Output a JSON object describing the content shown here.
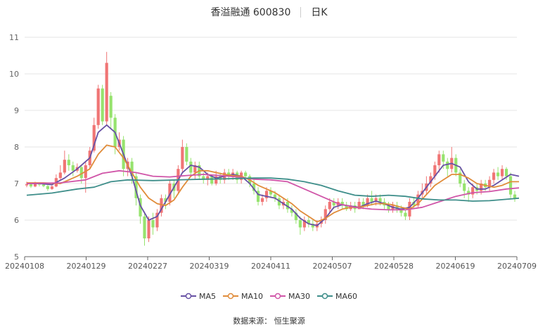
{
  "header": {
    "title": "香溢融通 600830",
    "period": "日K"
  },
  "source": "数据来源： 恒生聚源",
  "chart_data": {
    "type": "candlestick",
    "y_ticks": [
      "5",
      "6",
      "7",
      "8",
      "9",
      "10",
      "11"
    ],
    "ylim": [
      5,
      11
    ],
    "x_tick_labels": [
      "20240108",
      "20240129",
      "20240227",
      "20240319",
      "20240411",
      "20240507",
      "20240528",
      "20240619",
      "20240709"
    ],
    "colors": {
      "up": "#f07575",
      "down": "#96e36e",
      "MA5": "#6750a4",
      "MA10": "#e08c3a",
      "MA30": "#d055a8",
      "MA60": "#3e8e8a"
    },
    "candles": [
      [
        6.95,
        6.98,
        6.9,
        7.05
      ],
      [
        6.98,
        6.92,
        6.88,
        7.02
      ],
      [
        6.92,
        7.0,
        6.9,
        7.05
      ],
      [
        7.0,
        6.97,
        6.92,
        7.03
      ],
      [
        6.97,
        6.93,
        6.9,
        7.0
      ],
      [
        6.93,
        6.85,
        6.8,
        6.96
      ],
      [
        6.85,
        6.92,
        6.83,
        6.95
      ],
      [
        6.92,
        7.15,
        6.9,
        7.25
      ],
      [
        7.15,
        7.3,
        7.1,
        7.5
      ],
      [
        7.3,
        7.65,
        7.25,
        7.9
      ],
      [
        7.65,
        7.5,
        7.35,
        7.8
      ],
      [
        7.5,
        7.35,
        7.2,
        7.6
      ],
      [
        7.35,
        7.45,
        7.3,
        7.55
      ],
      [
        7.45,
        7.15,
        7.0,
        7.5
      ],
      [
        7.15,
        7.5,
        6.75,
        7.6
      ],
      [
        7.5,
        7.9,
        7.4,
        8.0
      ],
      [
        7.9,
        8.6,
        7.85,
        8.8
      ],
      [
        8.6,
        9.6,
        8.5,
        9.7
      ],
      [
        9.6,
        8.7,
        8.6,
        9.7
      ],
      [
        8.7,
        10.3,
        8.6,
        10.6
      ],
      [
        9.4,
        8.8,
        8.5,
        9.5
      ],
      [
        8.8,
        8.0,
        7.8,
        8.9
      ],
      [
        8.0,
        8.2,
        7.9,
        8.4
      ],
      [
        8.2,
        7.4,
        7.2,
        8.3
      ],
      [
        7.4,
        7.6,
        7.2,
        7.7
      ],
      [
        7.6,
        7.2,
        7.0,
        7.7
      ],
      [
        7.2,
        6.6,
        6.4,
        7.3
      ],
      [
        6.6,
        6.1,
        5.9,
        6.7
      ],
      [
        6.1,
        5.5,
        5.3,
        6.2
      ],
      [
        5.5,
        6.0,
        5.4,
        6.1
      ],
      [
        6.0,
        5.8,
        5.6,
        6.2
      ],
      [
        5.8,
        6.2,
        5.7,
        6.3
      ],
      [
        6.2,
        6.6,
        6.1,
        6.7
      ],
      [
        6.6,
        6.5,
        6.3,
        6.7
      ],
      [
        6.5,
        7.0,
        6.4,
        7.1
      ],
      [
        7.0,
        6.8,
        6.6,
        7.1
      ],
      [
        6.8,
        7.4,
        6.7,
        7.5
      ],
      [
        7.4,
        8.0,
        7.3,
        8.2
      ],
      [
        8.0,
        7.6,
        7.5,
        8.1
      ],
      [
        7.6,
        7.3,
        7.2,
        7.7
      ],
      [
        7.3,
        7.5,
        7.1,
        7.6
      ],
      [
        7.5,
        7.2,
        7.1,
        7.6
      ],
      [
        7.2,
        7.1,
        7.0,
        7.3
      ],
      [
        7.1,
        7.2,
        6.95,
        7.3
      ],
      [
        7.2,
        7.0,
        6.95,
        7.25
      ],
      [
        7.0,
        7.2,
        6.95,
        7.35
      ],
      [
        7.2,
        7.1,
        7.0,
        7.3
      ],
      [
        7.1,
        7.3,
        7.0,
        7.4
      ],
      [
        7.3,
        7.2,
        7.1,
        7.4
      ],
      [
        7.2,
        7.3,
        7.1,
        7.4
      ],
      [
        7.3,
        7.1,
        7.0,
        7.35
      ],
      [
        7.1,
        7.3,
        7.0,
        7.35
      ],
      [
        7.3,
        7.2,
        7.1,
        7.35
      ],
      [
        7.2,
        7.0,
        6.9,
        7.25
      ],
      [
        7.0,
        6.8,
        6.7,
        7.1
      ],
      [
        6.8,
        6.5,
        6.4,
        6.9
      ],
      [
        6.5,
        6.6,
        6.4,
        6.7
      ],
      [
        6.6,
        6.8,
        6.5,
        6.9
      ],
      [
        6.8,
        6.7,
        6.6,
        6.9
      ],
      [
        6.7,
        6.6,
        6.5,
        6.8
      ],
      [
        6.6,
        6.4,
        6.3,
        6.7
      ],
      [
        6.4,
        6.5,
        6.3,
        6.6
      ],
      [
        6.5,
        6.3,
        6.2,
        6.6
      ],
      [
        6.3,
        6.2,
        6.1,
        6.4
      ],
      [
        6.2,
        6.0,
        5.9,
        6.3
      ],
      [
        6.0,
        5.8,
        5.6,
        6.1
      ],
      [
        5.8,
        6.0,
        5.7,
        6.1
      ],
      [
        6.0,
        5.9,
        5.8,
        6.1
      ],
      [
        5.9,
        5.8,
        5.7,
        6.0
      ],
      [
        5.8,
        5.9,
        5.7,
        6.0
      ],
      [
        5.9,
        6.0,
        5.8,
        6.1
      ],
      [
        6.0,
        6.3,
        5.9,
        6.4
      ],
      [
        6.3,
        6.5,
        6.2,
        6.6
      ],
      [
        6.5,
        6.4,
        6.3,
        6.6
      ],
      [
        6.4,
        6.5,
        6.3,
        6.6
      ],
      [
        6.5,
        6.4,
        6.3,
        6.6
      ],
      [
        6.4,
        6.3,
        6.25,
        6.5
      ],
      [
        6.3,
        6.4,
        6.25,
        6.5
      ],
      [
        6.4,
        6.3,
        6.2,
        6.5
      ],
      [
        6.3,
        6.5,
        6.3,
        6.6
      ],
      [
        6.5,
        6.4,
        6.3,
        6.6
      ],
      [
        6.4,
        6.6,
        6.35,
        6.7
      ],
      [
        6.6,
        6.5,
        6.4,
        6.8
      ],
      [
        6.5,
        6.6,
        6.4,
        6.7
      ],
      [
        6.6,
        6.5,
        6.4,
        6.7
      ],
      [
        6.5,
        6.4,
        6.3,
        6.6
      ],
      [
        6.4,
        6.3,
        6.2,
        6.5
      ],
      [
        6.3,
        6.4,
        6.2,
        6.5
      ],
      [
        6.4,
        6.3,
        6.2,
        6.5
      ],
      [
        6.3,
        6.2,
        6.1,
        6.4
      ],
      [
        6.2,
        6.1,
        6.0,
        6.3
      ],
      [
        6.1,
        6.5,
        6.0,
        6.6
      ],
      [
        6.5,
        6.4,
        6.3,
        6.6
      ],
      [
        6.4,
        6.7,
        6.35,
        6.8
      ],
      [
        6.7,
        6.8,
        6.6,
        7.0
      ],
      [
        6.8,
        7.0,
        6.7,
        7.2
      ],
      [
        7.0,
        7.2,
        6.9,
        7.3
      ],
      [
        7.2,
        7.5,
        7.1,
        7.6
      ],
      [
        7.5,
        7.8,
        7.3,
        7.9
      ],
      [
        7.8,
        7.6,
        7.4,
        7.9
      ],
      [
        7.6,
        7.4,
        7.2,
        7.7
      ],
      [
        7.4,
        7.7,
        7.3,
        8.0
      ],
      [
        7.7,
        7.3,
        7.2,
        7.8
      ],
      [
        7.3,
        7.0,
        6.9,
        7.4
      ],
      [
        7.0,
        6.8,
        6.6,
        7.1
      ],
      [
        6.8,
        6.7,
        6.5,
        6.9
      ],
      [
        6.7,
        6.9,
        6.6,
        7.0
      ],
      [
        6.9,
        6.8,
        6.7,
        7.0
      ],
      [
        6.8,
        7.0,
        6.7,
        7.1
      ],
      [
        7.0,
        6.9,
        6.8,
        7.1
      ],
      [
        6.9,
        7.1,
        6.8,
        7.2
      ],
      [
        7.1,
        7.3,
        7.0,
        7.4
      ],
      [
        7.3,
        7.2,
        7.1,
        7.45
      ],
      [
        7.2,
        7.4,
        7.1,
        7.5
      ],
      [
        7.4,
        7.2,
        7.1,
        7.45
      ],
      [
        7.2,
        6.7,
        6.6,
        7.3
      ],
      [
        6.7,
        6.6,
        6.5,
        6.8
      ]
    ],
    "series": [
      {
        "name": "MA5",
        "points": [
          [
            0,
            7.0
          ],
          [
            3,
            7.0
          ],
          [
            6,
            6.97
          ],
          [
            9,
            7.15
          ],
          [
            12,
            7.4
          ],
          [
            15,
            7.7
          ],
          [
            17,
            8.4
          ],
          [
            19,
            8.6
          ],
          [
            21,
            8.4
          ],
          [
            23,
            7.8
          ],
          [
            25,
            7.2
          ],
          [
            27,
            6.4
          ],
          [
            29,
            6.0
          ],
          [
            31,
            6.1
          ],
          [
            33,
            6.5
          ],
          [
            35,
            6.9
          ],
          [
            37,
            7.3
          ],
          [
            39,
            7.5
          ],
          [
            41,
            7.45
          ],
          [
            43,
            7.25
          ],
          [
            45,
            7.15
          ],
          [
            47,
            7.2
          ],
          [
            49,
            7.25
          ],
          [
            51,
            7.2
          ],
          [
            53,
            7.0
          ],
          [
            55,
            6.7
          ],
          [
            57,
            6.65
          ],
          [
            59,
            6.6
          ],
          [
            61,
            6.45
          ],
          [
            63,
            6.3
          ],
          [
            65,
            6.05
          ],
          [
            67,
            5.9
          ],
          [
            69,
            5.85
          ],
          [
            71,
            6.05
          ],
          [
            73,
            6.35
          ],
          [
            75,
            6.42
          ],
          [
            77,
            6.38
          ],
          [
            79,
            6.35
          ],
          [
            81,
            6.45
          ],
          [
            83,
            6.52
          ],
          [
            85,
            6.45
          ],
          [
            87,
            6.35
          ],
          [
            89,
            6.3
          ],
          [
            91,
            6.35
          ],
          [
            93,
            6.6
          ],
          [
            95,
            6.9
          ],
          [
            97,
            7.2
          ],
          [
            99,
            7.5
          ],
          [
            101,
            7.55
          ],
          [
            103,
            7.45
          ],
          [
            105,
            7.05
          ],
          [
            107,
            6.85
          ],
          [
            109,
            6.85
          ],
          [
            111,
            6.95
          ],
          [
            113,
            7.1
          ],
          [
            115,
            7.25
          ],
          [
            117,
            7.2
          ]
        ]
      },
      {
        "name": "MA10",
        "points": [
          [
            0,
            7.02
          ],
          [
            4,
            7.02
          ],
          [
            8,
            7.0
          ],
          [
            12,
            7.2
          ],
          [
            15,
            7.4
          ],
          [
            17,
            7.8
          ],
          [
            19,
            8.05
          ],
          [
            21,
            8.0
          ],
          [
            23,
            7.7
          ],
          [
            25,
            7.3
          ],
          [
            27,
            6.9
          ],
          [
            29,
            6.6
          ],
          [
            31,
            6.45
          ],
          [
            33,
            6.4
          ],
          [
            35,
            6.55
          ],
          [
            37,
            6.9
          ],
          [
            39,
            7.2
          ],
          [
            41,
            7.35
          ],
          [
            43,
            7.35
          ],
          [
            45,
            7.3
          ],
          [
            47,
            7.25
          ],
          [
            49,
            7.22
          ],
          [
            51,
            7.2
          ],
          [
            53,
            7.1
          ],
          [
            55,
            6.95
          ],
          [
            57,
            6.85
          ],
          [
            59,
            6.75
          ],
          [
            61,
            6.6
          ],
          [
            63,
            6.45
          ],
          [
            65,
            6.25
          ],
          [
            67,
            6.1
          ],
          [
            69,
            5.95
          ],
          [
            71,
            6.05
          ],
          [
            73,
            6.2
          ],
          [
            75,
            6.3
          ],
          [
            77,
            6.35
          ],
          [
            79,
            6.35
          ],
          [
            81,
            6.4
          ],
          [
            83,
            6.45
          ],
          [
            85,
            6.45
          ],
          [
            87,
            6.42
          ],
          [
            89,
            6.35
          ],
          [
            91,
            6.3
          ],
          [
            93,
            6.45
          ],
          [
            95,
            6.7
          ],
          [
            97,
            6.95
          ],
          [
            99,
            7.1
          ],
          [
            101,
            7.25
          ],
          [
            103,
            7.25
          ],
          [
            105,
            7.15
          ],
          [
            107,
            7.0
          ],
          [
            109,
            6.95
          ],
          [
            111,
            6.9
          ],
          [
            113,
            6.95
          ],
          [
            115,
            7.05
          ],
          [
            117,
            7.05
          ]
        ]
      },
      {
        "name": "MA30",
        "points": [
          [
            0,
            7.0
          ],
          [
            8,
            7.02
          ],
          [
            14,
            7.1
          ],
          [
            18,
            7.28
          ],
          [
            22,
            7.35
          ],
          [
            26,
            7.3
          ],
          [
            30,
            7.2
          ],
          [
            34,
            7.18
          ],
          [
            38,
            7.22
          ],
          [
            42,
            7.25
          ],
          [
            46,
            7.22
          ],
          [
            50,
            7.18
          ],
          [
            54,
            7.12
          ],
          [
            58,
            7.1
          ],
          [
            62,
            7.05
          ],
          [
            66,
            6.85
          ],
          [
            70,
            6.65
          ],
          [
            74,
            6.45
          ],
          [
            78,
            6.35
          ],
          [
            82,
            6.3
          ],
          [
            86,
            6.28
          ],
          [
            90,
            6.28
          ],
          [
            94,
            6.35
          ],
          [
            98,
            6.5
          ],
          [
            102,
            6.65
          ],
          [
            106,
            6.75
          ],
          [
            110,
            6.78
          ],
          [
            114,
            6.85
          ],
          [
            117,
            6.88
          ]
        ]
      },
      {
        "name": "MA60",
        "points": [
          [
            0,
            6.68
          ],
          [
            6,
            6.74
          ],
          [
            12,
            6.85
          ],
          [
            16,
            6.9
          ],
          [
            20,
            7.05
          ],
          [
            24,
            7.1
          ],
          [
            30,
            7.08
          ],
          [
            36,
            7.1
          ],
          [
            42,
            7.12
          ],
          [
            48,
            7.13
          ],
          [
            54,
            7.15
          ],
          [
            58,
            7.15
          ],
          [
            62,
            7.12
          ],
          [
            66,
            7.05
          ],
          [
            70,
            6.95
          ],
          [
            74,
            6.8
          ],
          [
            78,
            6.68
          ],
          [
            82,
            6.65
          ],
          [
            86,
            6.68
          ],
          [
            90,
            6.65
          ],
          [
            94,
            6.58
          ],
          [
            98,
            6.55
          ],
          [
            102,
            6.55
          ],
          [
            106,
            6.52
          ],
          [
            110,
            6.53
          ],
          [
            114,
            6.57
          ],
          [
            117,
            6.6
          ]
        ]
      }
    ]
  }
}
